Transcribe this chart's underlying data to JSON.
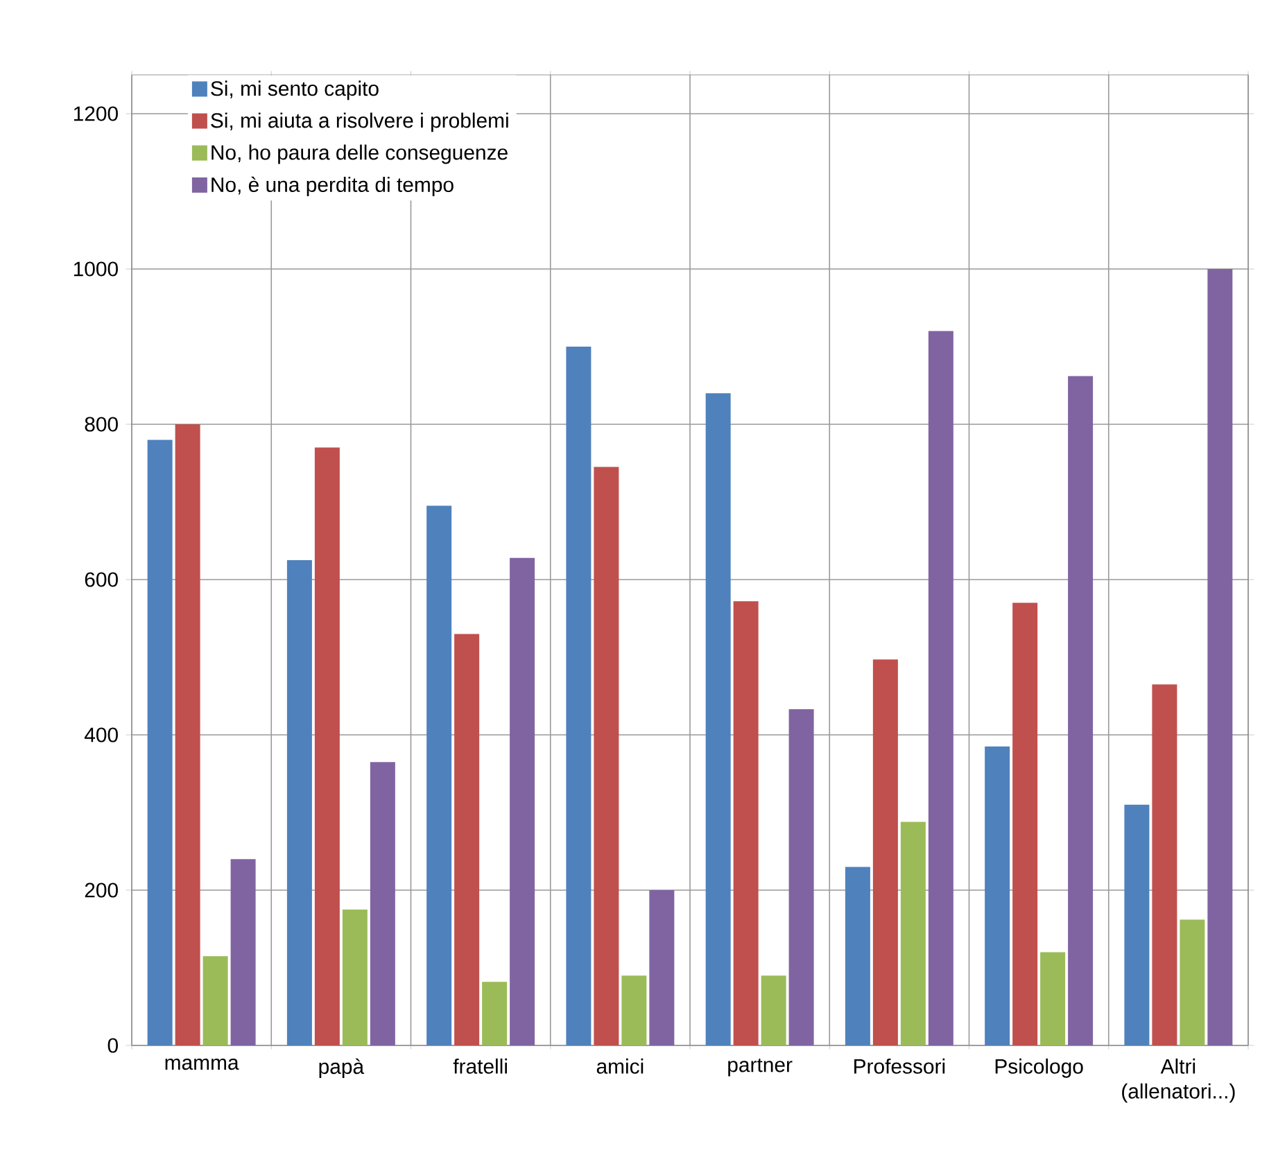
{
  "chart_data": {
    "type": "bar",
    "categories": [
      "mamma",
      "papà",
      "fratelli",
      "amici",
      "partner",
      "Professori",
      "Psicologo",
      "Altri (allenatori...)"
    ],
    "series": [
      {
        "name": "Si, mi sento capito",
        "color": "#4f81bd",
        "values": [
          780,
          625,
          695,
          900,
          840,
          230,
          385,
          310
        ]
      },
      {
        "name": "Si, mi aiuta a risolvere i problemi",
        "color": "#c0504d",
        "values": [
          800,
          770,
          530,
          745,
          572,
          497,
          570,
          465
        ]
      },
      {
        "name": "No, ho paura delle conseguenze",
        "color": "#9bbb59",
        "values": [
          115,
          175,
          82,
          90,
          90,
          288,
          120,
          162
        ]
      },
      {
        "name": "No, è una perdita di tempo",
        "color": "#8064a2",
        "values": [
          240,
          365,
          628,
          200,
          433,
          920,
          862,
          1000
        ]
      }
    ],
    "ylim": [
      0,
      1250
    ],
    "yticks": [
      0,
      200,
      400,
      600,
      800,
      1000,
      1200
    ],
    "grid": true,
    "legend": "top left"
  }
}
